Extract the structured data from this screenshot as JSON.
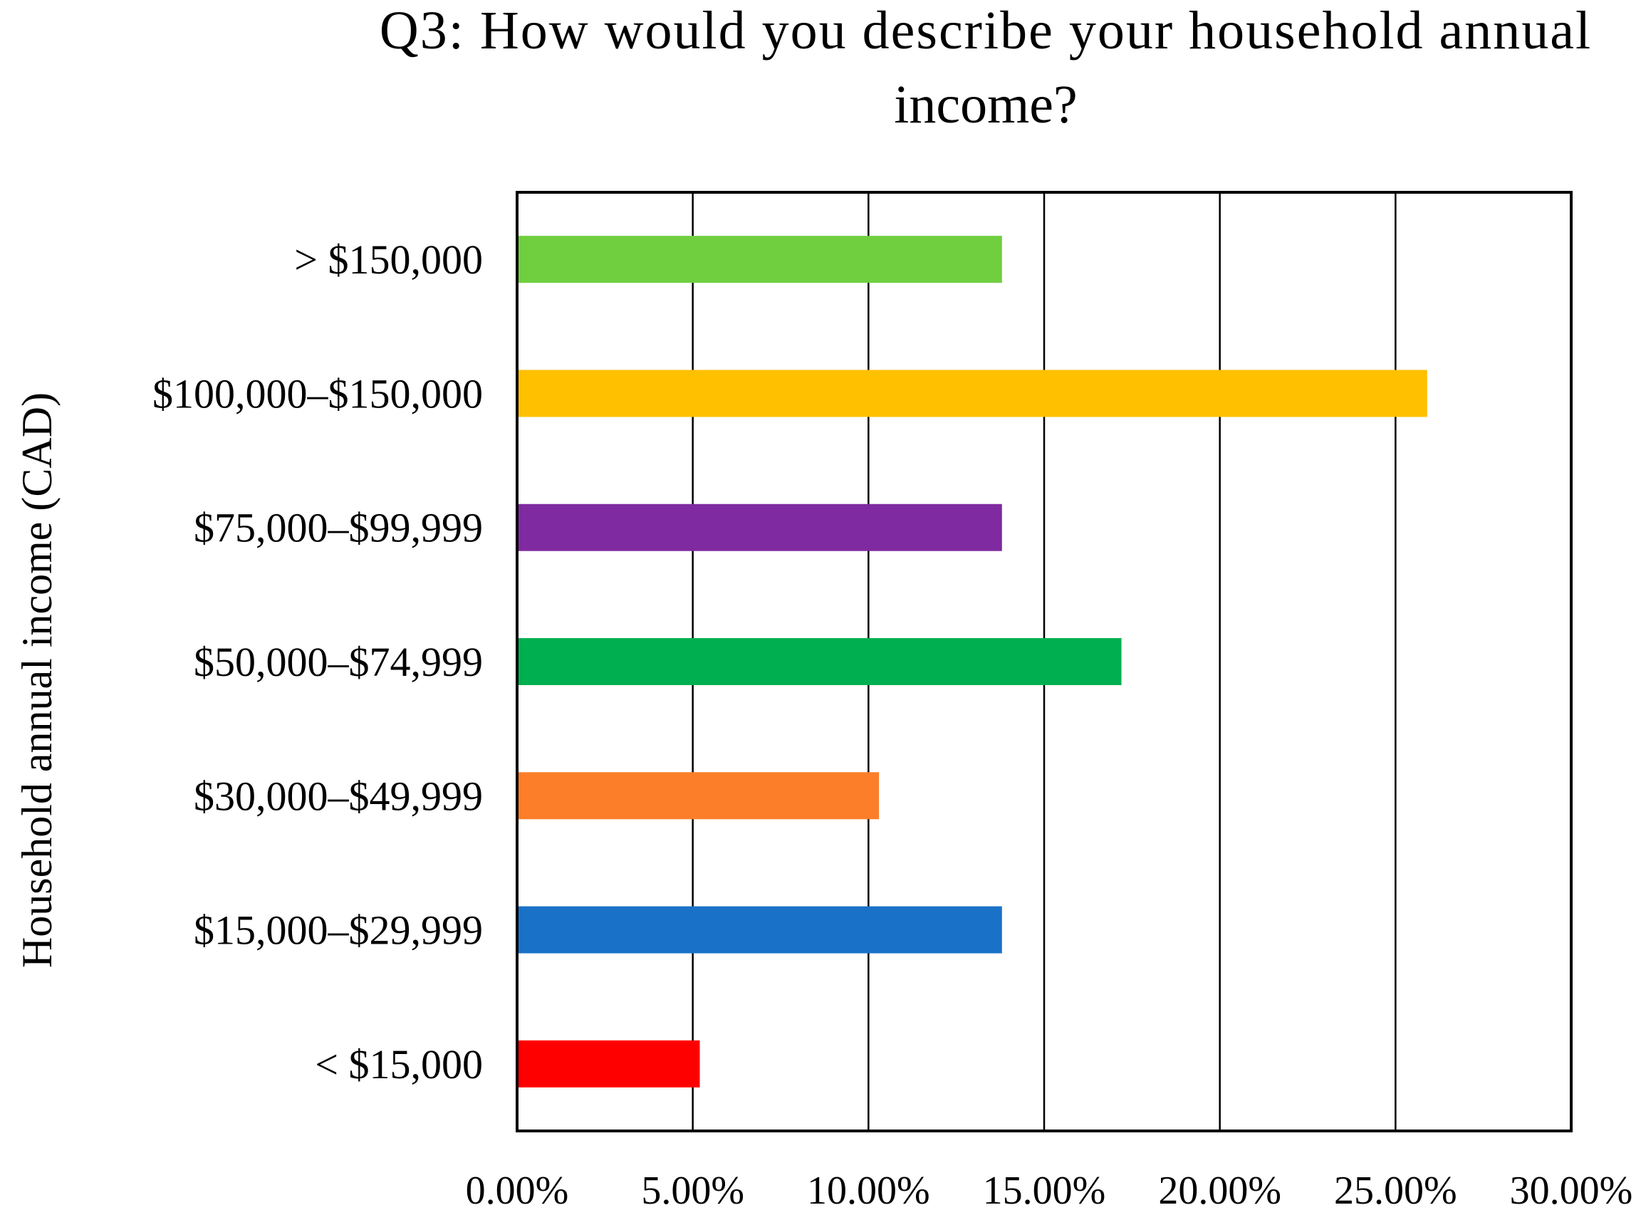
{
  "chart_data": {
    "type": "bar",
    "orientation": "horizontal",
    "title_lines": [
      "Q3: How would you describe your household annual",
      "income?"
    ],
    "xlabel": "",
    "ylabel": "Household annual income (CAD)",
    "xlim": [
      0,
      30
    ],
    "x_ticks": [
      "0.00%",
      "5.00%",
      "10.00%",
      "15.00%",
      "20.00%",
      "25.00%",
      "30.00%"
    ],
    "grid": "vertical",
    "legend": "none",
    "categories": [
      "> $150,000",
      "$100,000–$150,000",
      "$75,000–$99,999",
      "$50,000–$74,999",
      "$30,000–$49,999",
      "$15,000–$29,999",
      "< $15,000"
    ],
    "values": [
      13.8,
      25.9,
      13.8,
      17.2,
      10.3,
      13.8,
      5.2
    ],
    "colors": [
      "#6fcf3f",
      "#ffc000",
      "#7f2aa0",
      "#00b050",
      "#fd7e28",
      "#1a72c8",
      "#ff0000"
    ]
  }
}
